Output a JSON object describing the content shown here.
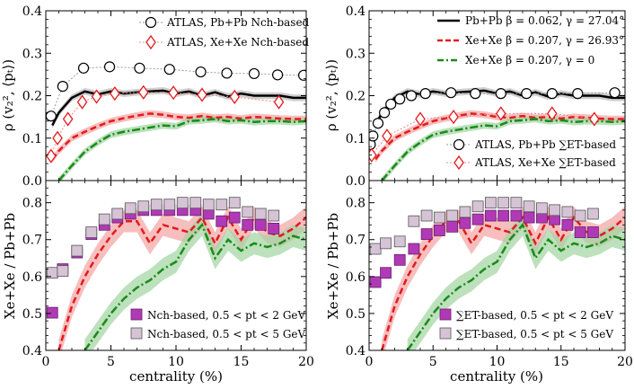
{
  "chart_data": {
    "type": "line",
    "xlabel": "centrality (%)",
    "xlim": [
      0,
      20
    ],
    "xticks": [
      0,
      5,
      10,
      15,
      20
    ],
    "panels": [
      {
        "id": "top-left",
        "ylabel": "ρ (v₂², ⟨pₜ⟩)",
        "ylim": [
          0,
          0.4
        ],
        "yticks": [
          "0.0",
          "0.1",
          "0.2",
          "0.3",
          "0.4"
        ],
        "legend": [
          {
            "label": "ATLAS, Pb+Pb Nch-based",
            "marker": "circle",
            "color": "#000000"
          },
          {
            "label": "ATLAS, Xe+Xe Nch-based",
            "marker": "diamond",
            "color": "#e31a1c"
          }
        ],
        "series": [
          {
            "name": "ATLAS Pb+Pb Nch-based",
            "style": "circle",
            "color": "#000000",
            "x": [
              0.4,
              1.3,
              2.9,
              4.9,
              7.2,
              9.5,
              11.9,
              13.9,
              16.0,
              17.8,
              19.8
            ],
            "y": [
              0.152,
              0.222,
              0.265,
              0.268,
              0.265,
              0.262,
              0.256,
              0.253,
              0.252,
              0.249,
              0.248
            ]
          },
          {
            "name": "ATLAS Xe+Xe Nch-based",
            "style": "diamond",
            "color": "#e31a1c",
            "x": [
              0.4,
              0.9,
              1.7,
              2.8,
              3.9,
              5.3,
              7.5,
              9.8,
              12.0,
              14.5,
              17.9
            ],
            "y": [
              0.058,
              0.1,
              0.145,
              0.185,
              0.198,
              0.205,
              0.208,
              0.207,
              0.202,
              0.197,
              0.185
            ]
          },
          {
            "name": "Pb+Pb β=0.062, γ=27.04°",
            "style": "solid",
            "color": "#000000",
            "band": "#bbbbbb",
            "x": [
              0.5,
              1,
              2,
              3,
              4,
              5,
              6,
              7,
              8,
              9,
              10,
              11,
              12,
              13,
              14,
              15,
              16,
              17,
              18,
              19,
              20
            ],
            "y": [
              0.13,
              0.16,
              0.195,
              0.21,
              0.203,
              0.21,
              0.205,
              0.208,
              0.21,
              0.212,
              0.205,
              0.21,
              0.2,
              0.208,
              0.198,
              0.205,
              0.2,
              0.2,
              0.2,
              0.195,
              0.195
            ]
          },
          {
            "name": "Xe+Xe β=0.207, γ=26.93°",
            "style": "dashed",
            "color": "#e31a1c",
            "band": "#f4a3a3",
            "x": [
              0.5,
              1,
              2,
              3,
              4,
              5,
              6,
              7,
              8,
              9,
              10,
              11,
              12,
              13,
              14,
              15,
              16,
              17,
              18,
              19,
              20
            ],
            "y": [
              0.05,
              0.07,
              0.1,
              0.115,
              0.128,
              0.14,
              0.147,
              0.153,
              0.158,
              0.155,
              0.15,
              0.148,
              0.152,
              0.148,
              0.15,
              0.146,
              0.15,
              0.148,
              0.146,
              0.145,
              0.145
            ]
          },
          {
            "name": "Xe+Xe β=0.207, γ=0",
            "style": "dashdot",
            "color": "#1a8a1a",
            "band": "#9fd49f",
            "x": [
              1.0,
              2,
              3,
              4,
              5,
              6,
              7,
              8,
              9,
              10,
              11,
              12,
              13,
              14,
              15,
              16,
              17,
              18,
              19,
              20
            ],
            "y": [
              0.0,
              0.035,
              0.068,
              0.09,
              0.108,
              0.115,
              0.12,
              0.125,
              0.13,
              0.128,
              0.14,
              0.142,
              0.145,
              0.14,
              0.142,
              0.138,
              0.14,
              0.14,
              0.138,
              0.14
            ]
          }
        ]
      },
      {
        "id": "top-right",
        "ylabel": "ρ (v₂², ⟨pₜ⟩)",
        "ylim": [
          0,
          0.4
        ],
        "yticks": [
          "0.0",
          "0.1",
          "0.2",
          "0.3",
          "0.4"
        ],
        "legend": [
          {
            "label": "Pb+Pb β = 0.062, γ = 27.04°",
            "line": "solid",
            "color": "#000000"
          },
          {
            "label": "Xe+Xe β = 0.207, γ = 26.93°",
            "line": "dashed",
            "color": "#e31a1c"
          },
          {
            "label": "Xe+Xe β = 0.207, γ = 0",
            "line": "dashdot",
            "color": "#1a8a1a"
          },
          {
            "label": "ATLAS, Pb+Pb ∑ET-based",
            "marker": "circle",
            "color": "#000000"
          },
          {
            "label": "ATLAS, Xe+Xe ∑ET-based",
            "marker": "diamond",
            "color": "#e31a1c"
          }
        ],
        "series": [
          {
            "name": "ATLAS Pb+Pb ET-based",
            "style": "circle",
            "color": "#000000",
            "x": [
              0.1,
              0.3,
              0.7,
              1.2,
              1.7,
              2.4,
              3.3,
              4.4,
              6.4,
              8.3,
              10.3,
              12.3,
              14.3,
              16.3,
              19.2
            ],
            "y": [
              0.085,
              0.105,
              0.135,
              0.16,
              0.18,
              0.192,
              0.2,
              0.205,
              0.207,
              0.205,
              0.205,
              0.205,
              0.205,
              0.205,
              0.207
            ]
          },
          {
            "name": "ATLAS Xe+Xe ET-based",
            "style": "diamond",
            "color": "#e31a1c",
            "x": [
              0.2,
              1.4,
              4.0,
              6.6,
              10.3,
              14.3,
              17.6
            ],
            "y": [
              0.06,
              0.105,
              0.145,
              0.15,
              0.158,
              0.158,
              0.145
            ]
          },
          {
            "name": "Pb+Pb β=0.062, γ=27.04°",
            "style": "solid",
            "color": "#000000",
            "band": "#bbbbbb",
            "x": [
              0.5,
              1,
              2,
              3,
              4,
              5,
              6,
              7,
              8,
              9,
              10,
              11,
              12,
              13,
              14,
              15,
              16,
              17,
              18,
              19,
              20
            ],
            "y": [
              0.13,
              0.16,
              0.195,
              0.21,
              0.203,
              0.21,
              0.205,
              0.208,
              0.21,
              0.212,
              0.205,
              0.21,
              0.2,
              0.208,
              0.198,
              0.205,
              0.2,
              0.2,
              0.2,
              0.195,
              0.195
            ]
          },
          {
            "name": "Xe+Xe β=0.207, γ=26.93°",
            "style": "dashed",
            "color": "#e31a1c",
            "band": "#f4a3a3",
            "x": [
              0.5,
              1,
              2,
              3,
              4,
              5,
              6,
              7,
              8,
              9,
              10,
              11,
              12,
              13,
              14,
              15,
              16,
              17,
              18,
              19,
              20
            ],
            "y": [
              0.05,
              0.07,
              0.1,
              0.115,
              0.128,
              0.14,
              0.147,
              0.153,
              0.158,
              0.155,
              0.15,
              0.148,
              0.152,
              0.148,
              0.15,
              0.146,
              0.15,
              0.148,
              0.146,
              0.145,
              0.145
            ]
          },
          {
            "name": "Xe+Xe β=0.207, γ=0",
            "style": "dashdot",
            "color": "#1a8a1a",
            "band": "#9fd49f",
            "x": [
              1.0,
              2,
              3,
              4,
              5,
              6,
              7,
              8,
              9,
              10,
              11,
              12,
              13,
              14,
              15,
              16,
              17,
              18,
              19,
              20
            ],
            "y": [
              0.0,
              0.035,
              0.068,
              0.09,
              0.108,
              0.115,
              0.12,
              0.125,
              0.13,
              0.128,
              0.14,
              0.142,
              0.145,
              0.14,
              0.142,
              0.138,
              0.14,
              0.14,
              0.138,
              0.14
            ]
          }
        ]
      },
      {
        "id": "bottom-left",
        "ylabel": "Xe+Xe / Pb+Pb",
        "ylim": [
          0.4,
          0.86
        ],
        "yticks": [
          "0.4",
          "0.5",
          "0.6",
          "0.7",
          "0.8"
        ],
        "legend": [
          {
            "label": "Nch-based, 0.5 < pt < 2 GeV",
            "marker": "square",
            "color": "#b03ab5"
          },
          {
            "label": "Nch-based, 0.5 < pt < 5 GeV",
            "marker": "square",
            "color": "#d6c3d6"
          }
        ],
        "series": [
          {
            "name": "Xe+Xe/Pb+Pb β=0.207 γ=26.93°",
            "style": "dashed",
            "color": "#e31a1c",
            "band": "#f4a3a3",
            "x": [
              1.0,
              2,
              3,
              4,
              5,
              6,
              7,
              8,
              9,
              10,
              11,
              12,
              13,
              14,
              15,
              16,
              17,
              18,
              19,
              20
            ],
            "y": [
              0.4,
              0.52,
              0.6,
              0.66,
              0.71,
              0.75,
              0.75,
              0.69,
              0.74,
              0.73,
              0.72,
              0.76,
              0.69,
              0.76,
              0.7,
              0.76,
              0.72,
              0.71,
              0.73,
              0.76
            ]
          },
          {
            "name": "Xe+Xe/Pb+Pb β=0.207 γ=0",
            "style": "dashdot",
            "color": "#1a8a1a",
            "band": "#9fd49f",
            "x": [
              3.0,
              4,
              5,
              6,
              7,
              8,
              9,
              10,
              11,
              12,
              13,
              14,
              15,
              16,
              17,
              18,
              19,
              20
            ],
            "y": [
              0.4,
              0.45,
              0.5,
              0.54,
              0.57,
              0.59,
              0.62,
              0.64,
              0.7,
              0.74,
              0.65,
              0.7,
              0.67,
              0.69,
              0.68,
              0.69,
              0.71,
              0.7
            ]
          },
          {
            "name": "Nch-based, 0.5 < pt < 2 GeV",
            "style": "square",
            "color": "#b03ab5",
            "x": [
              0.5,
              1.3,
              2.4,
              3.5,
              4.5,
              5.5,
              6.5,
              7.5,
              8.5,
              9.5,
              10.5,
              11.5,
              12.5,
              13.5,
              14.5,
              15.5,
              16.5,
              17.5
            ],
            "y": [
              0.502,
              0.62,
              0.665,
              0.715,
              0.74,
              0.76,
              0.77,
              0.78,
              0.78,
              0.78,
              0.78,
              0.78,
              0.77,
              0.75,
              0.76,
              0.74,
              0.74,
              0.73
            ]
          },
          {
            "name": "Nch-based, 0.5 < pt < 5 GeV",
            "style": "square",
            "color": "#d6c3d6",
            "x": [
              0.5,
              1.3,
              2.4,
              3.5,
              4.5,
              5.5,
              6.5,
              7.5,
              8.5,
              9.5,
              10.5,
              11.5,
              12.5,
              13.5,
              14.5,
              15.5,
              16.5,
              17.5
            ],
            "y": [
              0.61,
              0.615,
              0.67,
              0.72,
              0.755,
              0.77,
              0.785,
              0.79,
              0.795,
              0.795,
              0.8,
              0.8,
              0.795,
              0.795,
              0.8,
              0.775,
              0.77,
              0.765
            ]
          }
        ]
      },
      {
        "id": "bottom-right",
        "ylabel": "Xe+Xe / Pb+Pb",
        "ylim": [
          0.4,
          0.86
        ],
        "yticks": [
          "0.4",
          "0.5",
          "0.6",
          "0.7",
          "0.8"
        ],
        "legend": [
          {
            "label": "∑ET-based, 0.5 < pt < 2 GeV",
            "marker": "square",
            "color": "#b03ab5"
          },
          {
            "label": "∑ET-based, 0.5 < pt < 5 GeV",
            "marker": "square",
            "color": "#d6c3d6"
          }
        ],
        "series": [
          {
            "name": "Xe+Xe/Pb+Pb β=0.207 γ=26.93°",
            "style": "dashed",
            "color": "#e31a1c",
            "band": "#f4a3a3",
            "x": [
              1.0,
              2,
              3,
              4,
              5,
              6,
              7,
              8,
              9,
              10,
              11,
              12,
              13,
              14,
              15,
              16,
              17,
              18,
              19,
              20
            ],
            "y": [
              0.4,
              0.52,
              0.6,
              0.66,
              0.71,
              0.75,
              0.75,
              0.69,
              0.74,
              0.73,
              0.72,
              0.76,
              0.69,
              0.76,
              0.7,
              0.76,
              0.72,
              0.71,
              0.73,
              0.76
            ]
          },
          {
            "name": "Xe+Xe/Pb+Pb β=0.207 γ=0",
            "style": "dashdot",
            "color": "#1a8a1a",
            "band": "#9fd49f",
            "x": [
              3.0,
              4,
              5,
              6,
              7,
              8,
              9,
              10,
              11,
              12,
              13,
              14,
              15,
              16,
              17,
              18,
              19,
              20
            ],
            "y": [
              0.4,
              0.45,
              0.5,
              0.54,
              0.57,
              0.59,
              0.62,
              0.64,
              0.7,
              0.74,
              0.65,
              0.7,
              0.67,
              0.69,
              0.68,
              0.69,
              0.71,
              0.7
            ]
          },
          {
            "name": "∑ET-based, 0.5 < pt < 2 GeV",
            "style": "square",
            "color": "#b03ab5",
            "x": [
              0.5,
              1.3,
              2.4,
              3.5,
              4.5,
              5.5,
              6.5,
              7.5,
              8.5,
              9.5,
              10.5,
              11.5,
              12.5,
              13.5,
              14.5,
              15.5,
              16.5,
              17.5
            ],
            "y": [
              0.585,
              0.61,
              0.645,
              0.675,
              0.715,
              0.725,
              0.735,
              0.745,
              0.755,
              0.765,
              0.765,
              0.765,
              0.76,
              0.76,
              0.755,
              0.74,
              0.72,
              0.72
            ]
          },
          {
            "name": "∑ET-based, 0.5 < pt < 5 GeV",
            "style": "square",
            "color": "#d6c3d6",
            "x": [
              0.5,
              1.3,
              2.4,
              3.5,
              4.5,
              5.5,
              6.5,
              7.5,
              8.5,
              9.5,
              10.5,
              11.5,
              12.5,
              13.5,
              14.5,
              15.5,
              16.5,
              17.5
            ],
            "y": [
              0.675,
              0.69,
              0.695,
              0.75,
              0.765,
              0.76,
              0.765,
              0.775,
              0.79,
              0.8,
              0.8,
              0.8,
              0.79,
              0.785,
              0.78,
              0.775,
              0.765,
              0.77
            ]
          }
        ]
      }
    ]
  }
}
